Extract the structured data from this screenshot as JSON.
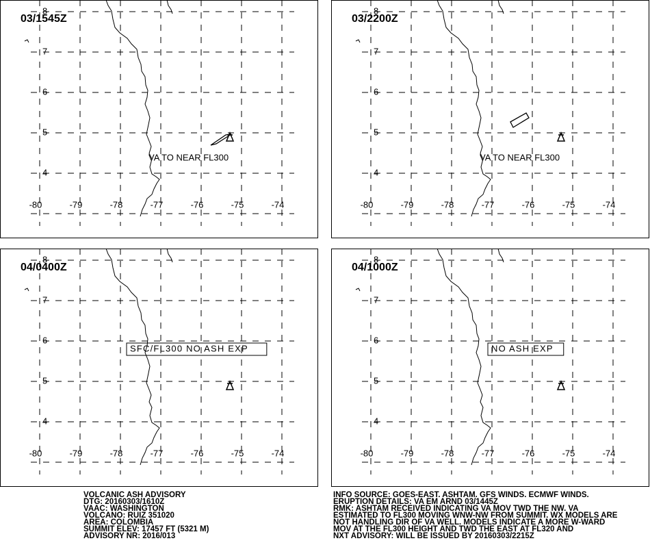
{
  "panels": [
    {
      "time": "03/1545Z",
      "annotation": "VA TO NEAR FL300"
    },
    {
      "time": "03/2200Z",
      "annotation": "VA TO NEAR FL300"
    },
    {
      "time": "04/0400Z",
      "annotation": "SFC/FL300 NO ASH EXP"
    },
    {
      "time": "04/1000Z",
      "annotation": "NO ASH EXP"
    }
  ],
  "latitudes": [
    8,
    7,
    6,
    5,
    4
  ],
  "longitudes": [
    -80,
    -79,
    -78,
    -77,
    -76,
    -75,
    -74
  ],
  "advisory_left": [
    "VOLCANIC ASH ADVISORY",
    "DTG: 20160303/1610Z",
    "VAAC: WASHINGTON",
    "VOLCANO: RUIZ 351020",
    "AREA: COLOMBIA",
    "SUMMIT ELEV: 17457 FT (5321 M)",
    "ADVISORY NR: 2016/013"
  ],
  "advisory_right": [
    "INFO SOURCE: GOES-EAST. ASHTAM. GFS WINDS. ECMWF WINDS.",
    "ERUPTION DETAILS: VA EM ARND 03/1445Z",
    "RMK: ASHTAM RECEIVED INDICATING VA MOV TWD THE NW. VA",
    "ESTIMATED TO FL300 MOVING WNW-NW FROM SUMMIT. WX MODELS ARE",
    "NOT HANDLING DIR OF VA WELL. MODELS INDICATE A MORE W-WARD",
    "MOV AT THE FL300 HEIGHT AND TWD THE EAST AT FL320 AND",
    "NXT ADVISORY: WILL BE ISSUED BY 20160303/2215Z"
  ]
}
